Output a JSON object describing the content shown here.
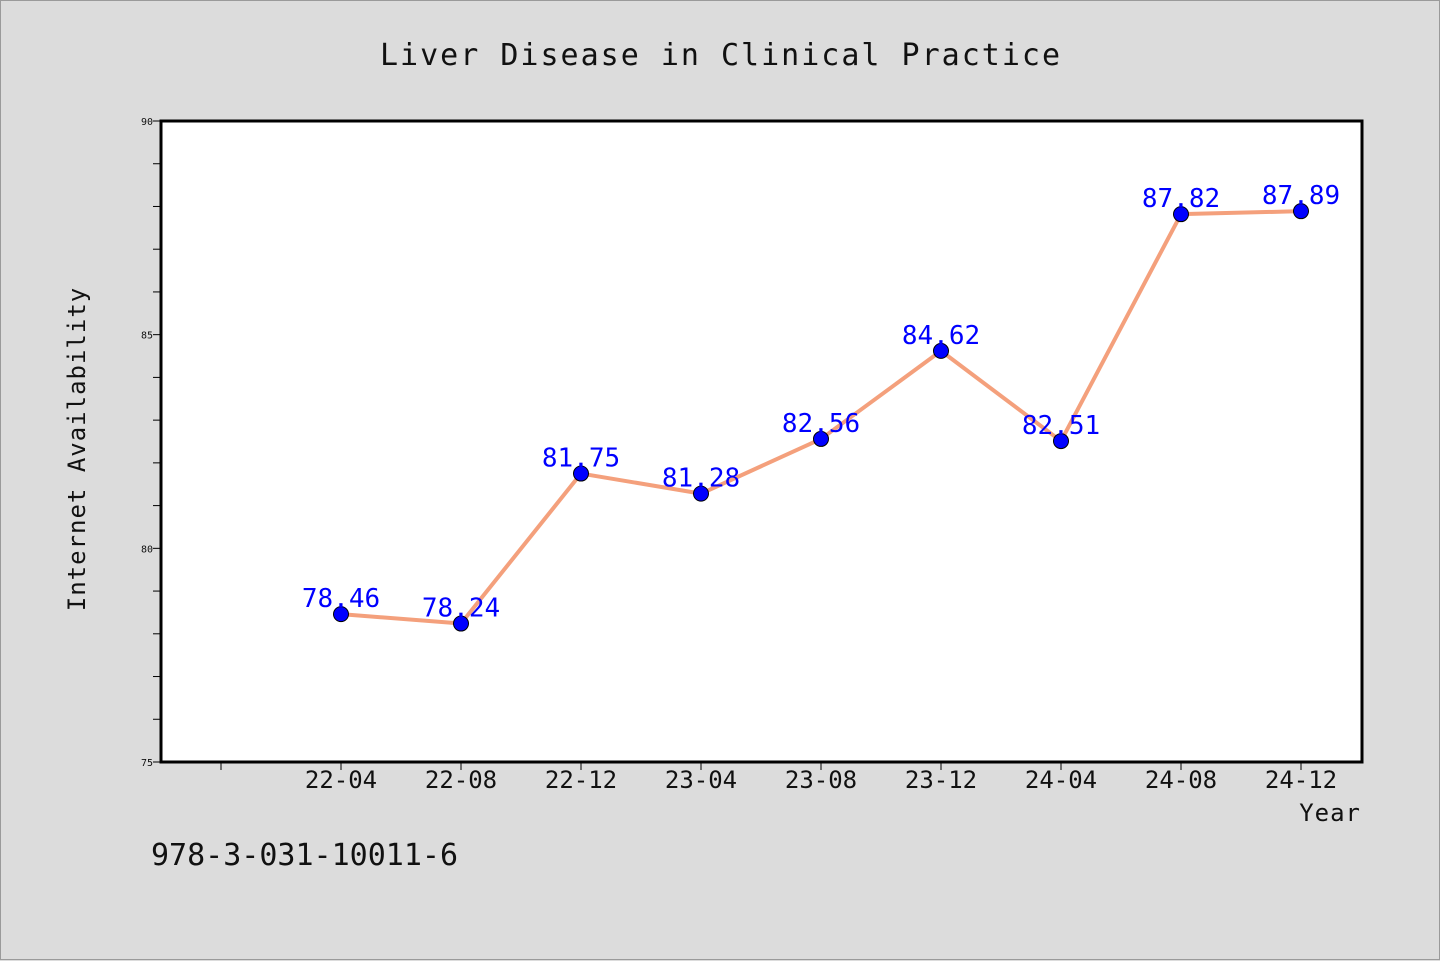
{
  "chart_data": {
    "type": "line",
    "title": "Liver Disease in Clinical Practice",
    "xlabel": "Year",
    "ylabel": "Internet Availability",
    "categories": [
      "22-04",
      "22-08",
      "22-12",
      "23-04",
      "23-08",
      "23-12",
      "24-04",
      "24-08",
      "24-12"
    ],
    "series": [
      {
        "values": [
          78.46,
          78.24,
          81.75,
          81.28,
          82.56,
          84.62,
          82.51,
          87.82,
          87.89
        ],
        "line_color": "#f4a07c",
        "marker_color": "#0000ff"
      }
    ],
    "labels": [
      "78.46",
      "78.24",
      "81.75",
      "81.28",
      "82.56",
      "84.62",
      "82.51",
      "87.82",
      "87.89"
    ],
    "ylim": [
      75,
      90
    ],
    "y_ticks": [
      "75",
      "80",
      "85",
      "90"
    ],
    "y_minor_step": 1,
    "grid": false,
    "legend": "none"
  },
  "footer": {
    "isbn": "978-3-031-10011-6"
  }
}
